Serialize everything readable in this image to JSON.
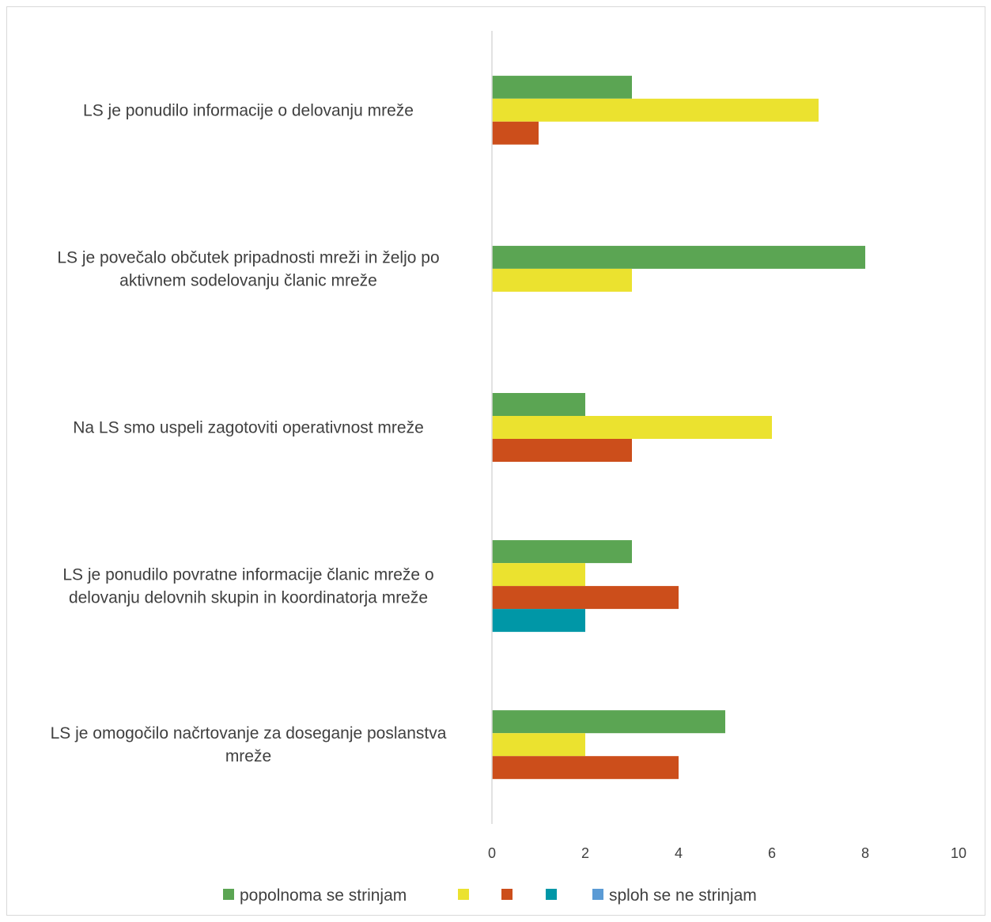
{
  "chart_data": {
    "type": "bar",
    "orientation": "horizontal",
    "categories": [
      [
        "LS je ponudilo informacije o delovanju mreže"
      ],
      [
        "LS je povečalo občutek pripadnosti mreži in željo po",
        "aktivnem sodelovanju članic mreže"
      ],
      [
        "Na LS smo uspeli zagotoviti operativnost mreže"
      ],
      [
        "LS je ponudilo povratne informacije članic mreže o",
        "delovanju delovnih skupin in koordinatorja mreže"
      ],
      [
        "LS je omogočilo načrtovanje za doseganje poslanstva",
        "mreže"
      ]
    ],
    "series": [
      {
        "name": "popolnoma se strinjam",
        "color": "#5ba553",
        "values": [
          3,
          8,
          2,
          3,
          5
        ]
      },
      {
        "name": "",
        "color": "#ebe22f",
        "values": [
          7,
          3,
          6,
          2,
          2
        ]
      },
      {
        "name": "",
        "color": "#cc4e1b",
        "values": [
          1,
          0,
          3,
          4,
          4
        ]
      },
      {
        "name": "",
        "color": "#0097a7",
        "values": [
          0,
          0,
          0,
          2,
          0
        ]
      },
      {
        "name": "sploh se ne strinjam",
        "color": "#5b9bd5",
        "values": [
          0,
          0,
          0,
          0,
          0
        ]
      }
    ],
    "xlim": [
      0,
      10
    ],
    "xticks": [
      0,
      2,
      4,
      6,
      8,
      10
    ],
    "title": "",
    "xlabel": "",
    "ylabel": "",
    "grid": false,
    "legend_position": "bottom",
    "axis_color": "#d9d9d9",
    "text_color": "#404040"
  }
}
